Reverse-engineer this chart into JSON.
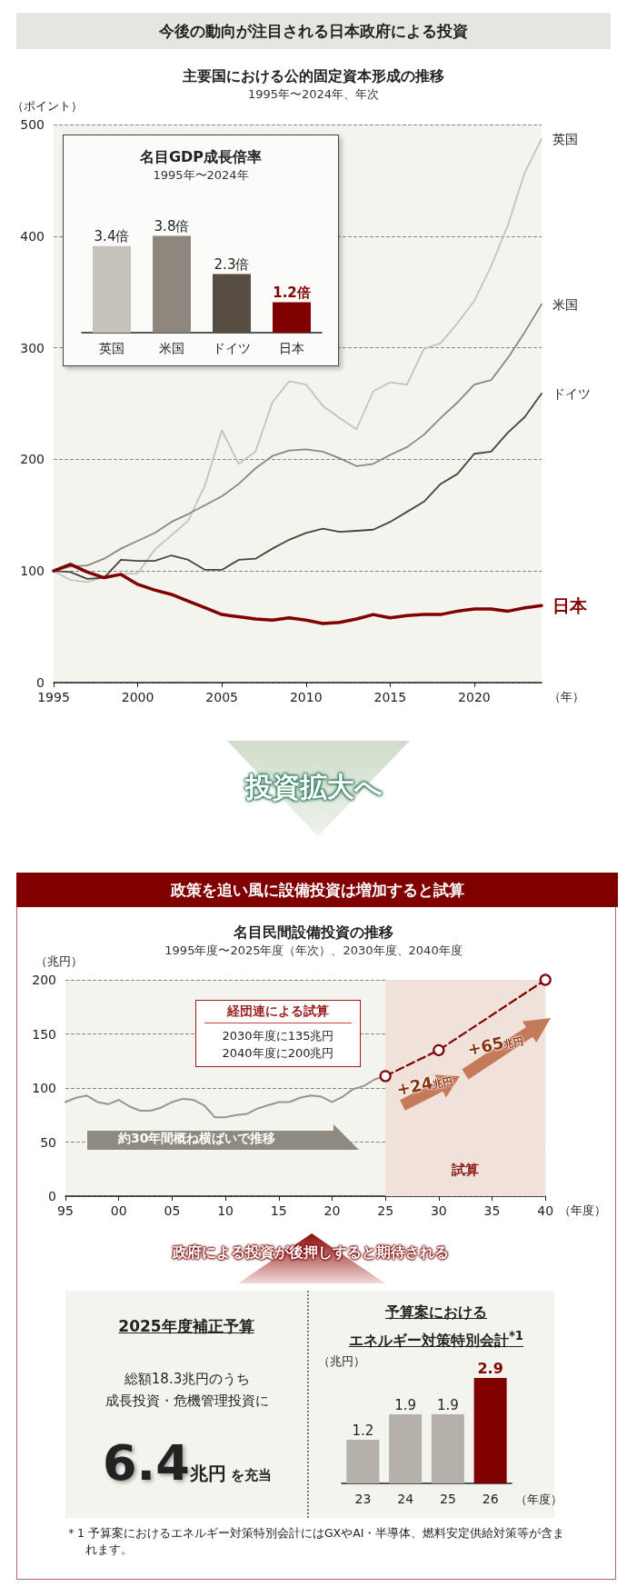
{
  "chart_data": [
    {
      "type": "line",
      "title": "主要国における公的固定資本形成の推移",
      "subtitle": "1995年〜2024年、年次",
      "xlabel": "（年）",
      "ylabel": "（ポイント）",
      "x": [
        1995,
        1996,
        1997,
        1998,
        1999,
        2000,
        2001,
        2002,
        2003,
        2004,
        2005,
        2006,
        2007,
        2008,
        2009,
        2010,
        2011,
        2012,
        2013,
        2014,
        2015,
        2016,
        2017,
        2018,
        2019,
        2020,
        2021,
        2022,
        2023,
        2024
      ],
      "xlim": [
        1995,
        2024
      ],
      "xticks": [
        1995,
        2000,
        2005,
        2010,
        2015,
        2020
      ],
      "ylim": [
        0,
        500
      ],
      "yticks": [
        0,
        100,
        200,
        300,
        400,
        500
      ],
      "grid": "y",
      "series": [
        {
          "name": "英国",
          "color": "#c5c1bb",
          "values": [
            100,
            92,
            90,
            95,
            97,
            98,
            119,
            132,
            145,
            177,
            226,
            196,
            207,
            251,
            270,
            267,
            248,
            237,
            227,
            261,
            269,
            267,
            299,
            304,
            322,
            342,
            373,
            410,
            457,
            487
          ]
        },
        {
          "name": "米国",
          "color": "#8e877e",
          "values": [
            100,
            104,
            105,
            111,
            120,
            127,
            134,
            144,
            151,
            159,
            167,
            178,
            192,
            203,
            208,
            209,
            207,
            201,
            194,
            196,
            204,
            211,
            222,
            237,
            251,
            267,
            271,
            291,
            314,
            339
          ]
        },
        {
          "name": "ドイツ",
          "color": "#4b4338",
          "values": [
            100,
            99,
            93,
            94,
            110,
            109,
            109,
            114,
            110,
            101,
            101,
            110,
            111,
            120,
            128,
            134,
            138,
            135,
            136,
            137,
            144,
            153,
            162,
            178,
            187,
            205,
            207,
            224,
            238,
            259
          ]
        },
        {
          "name": "日本",
          "color": "#800000",
          "values": [
            100,
            106,
            99,
            94,
            97,
            88,
            83,
            79,
            73,
            67,
            61,
            59,
            57,
            56,
            58,
            56,
            53,
            54,
            57,
            61,
            58,
            60,
            61,
            61,
            64,
            66,
            66,
            64,
            67,
            69
          ]
        }
      ],
      "annotations": [
        "今後の動向が注目される日本政府による投資",
        "投資拡大へ"
      ]
    },
    {
      "type": "bar",
      "title": "名目GDP成長倍率",
      "subtitle": "1995年〜2024年",
      "categories": [
        "英国",
        "米国",
        "ドイツ",
        "日本"
      ],
      "values": [
        3.4,
        3.8,
        2.3,
        1.2
      ],
      "colors": [
        "#c5c1bb",
        "#8e877e",
        "#574d42",
        "#800000"
      ],
      "value_labels": [
        "3.4倍",
        "3.8倍",
        "2.3倍",
        "1.2倍"
      ],
      "tick_labels": "x"
    },
    {
      "type": "line",
      "title": "名目民間設備投資の推移",
      "subtitle": "1995年度〜2025年度（年次）、2030年度、2040年度",
      "xlabel": "（年度）",
      "ylabel": "（兆円）",
      "x": [
        1995,
        1996,
        1997,
        1998,
        1999,
        2000,
        2001,
        2002,
        2003,
        2004,
        2005,
        2006,
        2007,
        2008,
        2009,
        2010,
        2011,
        2012,
        2013,
        2014,
        2015,
        2016,
        2017,
        2018,
        2019,
        2020,
        2021,
        2022,
        2023,
        2024,
        2025
      ],
      "xlim": [
        1995,
        2040
      ],
      "xticks": [
        {
          "value": 1995,
          "label": "95"
        },
        {
          "value": 2000,
          "label": "00"
        },
        {
          "value": 2005,
          "label": "05"
        },
        {
          "value": 2010,
          "label": "10"
        },
        {
          "value": 2015,
          "label": "15"
        },
        {
          "value": 2020,
          "label": "20"
        },
        {
          "value": 2025,
          "label": "25"
        },
        {
          "value": 2030,
          "label": "30"
        },
        {
          "value": 2035,
          "label": "35"
        },
        {
          "value": 2040,
          "label": "40"
        }
      ],
      "ylim": [
        0,
        200
      ],
      "yticks": [
        0,
        50,
        100,
        150,
        200
      ],
      "grid": "y",
      "series": [
        {
          "color": "#99958d",
          "values": [
            87,
            91,
            93,
            87,
            85,
            89,
            83,
            79,
            79,
            82,
            87,
            90,
            89,
            84,
            73,
            73,
            75,
            76,
            81,
            84,
            87,
            87,
            91,
            93,
            92,
            87,
            92,
            99,
            102,
            108,
            111
          ]
        },
        {
          "type": "line",
          "color": "#800000",
          "x": [
            2025,
            2030,
            2040
          ],
          "values": [
            111,
            135,
            200
          ],
          "line_style": "dashed",
          "marker": "circle"
        }
      ],
      "bands": [
        {
          "axis": "x",
          "from": 2025,
          "to": 2040,
          "label": "試算",
          "color": "#f0e2da"
        }
      ],
      "annotations": [
        "政策を追い風に設備投資は増加すると試算",
        "経団連による試算",
        "2030年度に135兆円",
        "2040年度に200兆円",
        "+24兆円",
        "+65兆円",
        "約30年間概ね横ばいで推移",
        "政府による投資が後押しすると期待される"
      ]
    },
    {
      "type": "other",
      "title": "2025年度補正予算",
      "annotations": [
        "総額18.3兆円のうち",
        "成長投資・危機管理投資に",
        "6.4兆円 を充当"
      ]
    },
    {
      "type": "bar",
      "title": "予算案における",
      "subtitle": "エネルギー対策特別会計$^{*1}$",
      "xlabel": "（年度）",
      "ylabel": "（兆円）",
      "categories": [
        "23",
        "24",
        "25",
        "26"
      ],
      "values": [
        1.2,
        1.9,
        1.9,
        2.9
      ],
      "colors": [
        "#b5b0aa",
        "#b5b0aa",
        "#b5b0aa",
        "#800000"
      ],
      "data_labels": true,
      "tick_labels": "x",
      "annotations": [
        "＊1 予算案におけるエネルギー対策特別会計にはGXやAI・半導体、燃料安定供給対策等が含まれます。"
      ]
    }
  ]
}
